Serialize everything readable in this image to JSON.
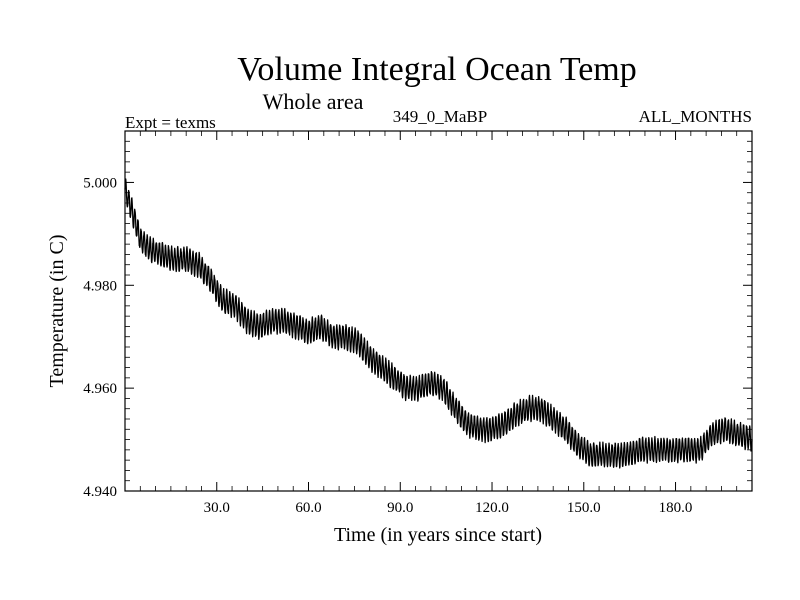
{
  "chart_data": {
    "type": "line",
    "title": "Volume Integral Ocean Temp",
    "subtitle": "Whole area",
    "header": {
      "left": "Expt = texms",
      "center": "349_0_MaBP",
      "right": "ALL_MONTHS"
    },
    "xlabel": "Time (in years since start)",
    "ylabel": "Temperature (in C)",
    "xlim": [
      0,
      205
    ],
    "ylim": [
      4.94,
      5.01
    ],
    "x_ticks": [
      {
        "value": 30,
        "label": "30.0"
      },
      {
        "value": 60,
        "label": "60.0"
      },
      {
        "value": 90,
        "label": "90.0"
      },
      {
        "value": 120,
        "label": "120.0"
      },
      {
        "value": 150,
        "label": "150.0"
      },
      {
        "value": 180,
        "label": "180.0"
      }
    ],
    "y_ticks": [
      {
        "value": 4.94,
        "label": "4.940"
      },
      {
        "value": 4.96,
        "label": "4.960"
      },
      {
        "value": 4.98,
        "label": "4.980"
      },
      {
        "value": 5.0,
        "label": "5.000"
      }
    ],
    "seasonal_amplitude": 0.0022,
    "samples_per_year": 12,
    "series": [
      {
        "name": "Volume Integral Ocean Temp",
        "color": "#000000",
        "x": [
          0,
          2,
          5,
          8,
          12,
          16,
          20,
          24,
          28,
          32,
          36,
          40,
          44,
          48,
          52,
          56,
          60,
          64,
          68,
          72,
          76,
          80,
          84,
          88,
          92,
          96,
          100,
          104,
          108,
          112,
          116,
          120,
          124,
          128,
          132,
          136,
          140,
          144,
          148,
          152,
          156,
          160,
          164,
          168,
          172,
          176,
          180,
          184,
          188,
          192,
          196,
          200,
          205
        ],
        "y": [
          4.9985,
          4.995,
          4.989,
          4.987,
          4.986,
          4.985,
          4.985,
          4.984,
          4.981,
          4.977,
          4.976,
          4.973,
          4.972,
          4.973,
          4.973,
          4.972,
          4.971,
          4.972,
          4.97,
          4.97,
          4.969,
          4.966,
          4.964,
          4.962,
          4.96,
          4.96,
          4.961,
          4.96,
          4.956,
          4.953,
          4.952,
          4.952,
          4.953,
          4.955,
          4.956,
          4.956,
          4.954,
          4.952,
          4.949,
          4.947,
          4.947,
          4.947,
          4.947,
          4.948,
          4.948,
          4.948,
          4.948,
          4.948,
          4.948,
          4.951,
          4.952,
          4.951,
          4.95
        ]
      }
    ]
  }
}
